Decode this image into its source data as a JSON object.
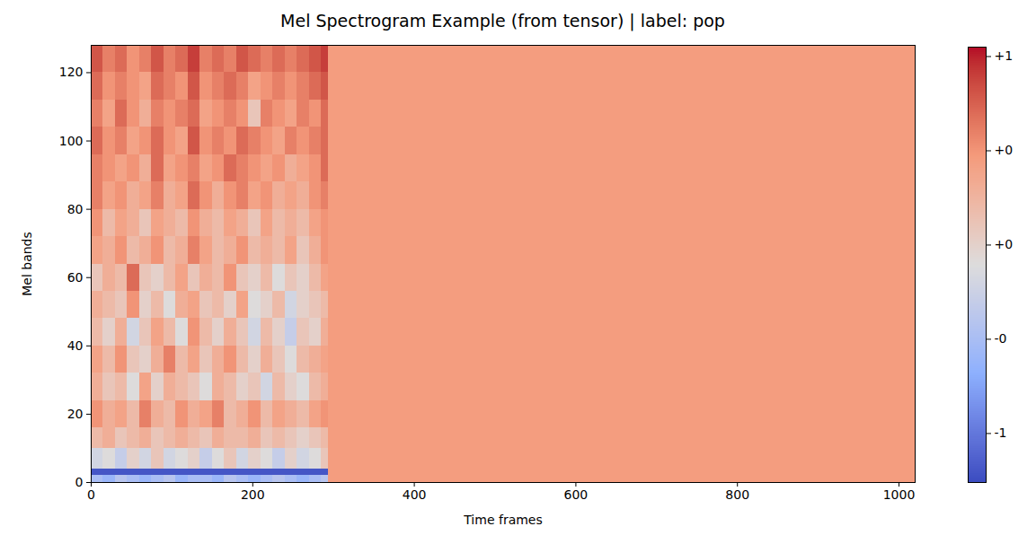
{
  "chart_data": {
    "type": "heatmap",
    "title": "Mel Spectrogram Example (from tensor) | label: pop",
    "x_label": "Time frames",
    "y_label": "Mel bands",
    "xlim": [
      0,
      1020
    ],
    "ylim": [
      0,
      128
    ],
    "xticks": [
      0,
      200,
      400,
      600,
      800,
      1000
    ],
    "yticks": [
      0,
      20,
      40,
      60,
      80,
      100,
      120
    ],
    "x_edges": [
      0,
      15,
      30,
      45,
      60,
      75,
      90,
      105,
      120,
      135,
      150,
      165,
      180,
      195,
      210,
      225,
      240,
      255,
      270,
      285,
      294,
      1020
    ],
    "y_edges": [
      0,
      2,
      4,
      10,
      16,
      24,
      32,
      40,
      48,
      56,
      64,
      72,
      80,
      88,
      96,
      104,
      112,
      120,
      128
    ],
    "cells": [
      [
        -0.5,
        -0.6,
        -0.4,
        -0.5,
        -0.6,
        -0.5,
        -0.4,
        -0.6,
        -0.5,
        -0.5,
        -0.6,
        -0.4,
        -0.5,
        -0.6,
        -0.5,
        -0.4,
        -0.5,
        -0.6,
        -0.5,
        -0.4,
        0.45
      ],
      [
        -1.2,
        -1.2,
        -1.2,
        -1.2,
        -1.2,
        -1.2,
        -1.2,
        -1.2,
        -1.2,
        -1.2,
        -1.2,
        -1.2,
        -1.2,
        -1.2,
        -1.2,
        -1.2,
        -1.2,
        -1.2,
        -1.2,
        -1.2,
        0.45
      ],
      [
        -0.2,
        -0.1,
        -0.3,
        0.0,
        -0.2,
        0.1,
        -0.2,
        -0.1,
        0.0,
        -0.3,
        -0.1,
        0.1,
        -0.2,
        0.0,
        -0.1,
        -0.3,
        0.0,
        -0.2,
        -0.1,
        0.1,
        0.45
      ],
      [
        0.2,
        0.3,
        0.1,
        0.2,
        0.3,
        0.1,
        0.2,
        0.3,
        0.2,
        0.1,
        0.3,
        0.2,
        0.2,
        0.3,
        0.1,
        0.2,
        0.1,
        0.0,
        0.1,
        0.2,
        0.45
      ],
      [
        0.5,
        0.3,
        0.4,
        0.2,
        0.6,
        0.3,
        0.2,
        0.5,
        0.3,
        0.4,
        0.6,
        0.2,
        0.3,
        0.5,
        0.2,
        0.4,
        0.3,
        0.2,
        0.4,
        0.5,
        0.45
      ],
      [
        0.3,
        0.1,
        0.2,
        -0.1,
        0.4,
        0.0,
        0.3,
        0.2,
        0.1,
        -0.1,
        0.3,
        0.2,
        0.0,
        0.1,
        -0.2,
        0.2,
        0.0,
        -0.1,
        0.2,
        0.3,
        0.45
      ],
      [
        0.4,
        0.2,
        0.5,
        0.1,
        0.0,
        0.3,
        0.6,
        0.2,
        0.4,
        0.1,
        0.3,
        0.5,
        0.2,
        0.0,
        0.3,
        0.1,
        -0.1,
        0.2,
        0.3,
        0.4,
        0.45
      ],
      [
        0.2,
        0.0,
        0.3,
        -0.2,
        0.1,
        0.4,
        0.2,
        -0.1,
        0.5,
        0.2,
        0.0,
        0.3,
        0.1,
        -0.2,
        0.2,
        0.0,
        -0.3,
        0.1,
        0.0,
        0.3,
        0.45
      ],
      [
        0.3,
        0.2,
        0.1,
        0.5,
        0.0,
        0.2,
        -0.1,
        0.3,
        0.4,
        0.1,
        0.2,
        0.0,
        0.4,
        -0.1,
        0.0,
        0.2,
        -0.2,
        0.0,
        0.1,
        0.2,
        0.45
      ],
      [
        0.1,
        0.3,
        0.2,
        0.7,
        0.1,
        0.0,
        0.2,
        0.4,
        0.1,
        0.3,
        0.2,
        0.5,
        0.1,
        0.0,
        0.2,
        -0.1,
        0.1,
        0.0,
        0.2,
        0.4,
        0.45
      ],
      [
        0.4,
        0.3,
        0.5,
        0.2,
        0.3,
        0.5,
        0.2,
        0.3,
        0.6,
        0.4,
        0.2,
        0.3,
        0.5,
        0.2,
        0.3,
        0.2,
        0.4,
        0.1,
        0.3,
        0.5,
        0.45
      ],
      [
        0.5,
        0.2,
        0.4,
        0.3,
        0.1,
        0.4,
        0.3,
        0.2,
        0.5,
        0.3,
        0.2,
        0.4,
        0.3,
        0.1,
        0.4,
        0.2,
        0.3,
        0.2,
        0.4,
        0.5,
        0.45
      ],
      [
        0.6,
        0.4,
        0.5,
        0.3,
        0.4,
        0.6,
        0.3,
        0.4,
        0.7,
        0.5,
        0.3,
        0.5,
        0.6,
        0.4,
        0.5,
        0.3,
        0.4,
        0.3,
        0.5,
        0.6,
        0.45
      ],
      [
        0.6,
        0.5,
        0.4,
        0.5,
        0.3,
        0.7,
        0.4,
        0.5,
        0.6,
        0.4,
        0.5,
        0.7,
        0.6,
        0.5,
        0.4,
        0.5,
        0.3,
        0.4,
        0.5,
        0.7,
        0.45
      ],
      [
        0.7,
        0.5,
        0.6,
        0.4,
        0.5,
        0.7,
        0.5,
        0.4,
        0.8,
        0.5,
        0.6,
        0.5,
        0.7,
        0.6,
        0.5,
        0.4,
        0.6,
        0.5,
        0.6,
        0.7,
        0.45
      ],
      [
        0.6,
        0.4,
        0.7,
        0.5,
        0.3,
        0.6,
        0.5,
        0.6,
        0.7,
        0.4,
        0.5,
        0.6,
        0.5,
        0.1,
        0.6,
        0.5,
        0.4,
        0.6,
        0.5,
        0.7,
        0.45
      ],
      [
        0.7,
        0.5,
        0.6,
        0.5,
        0.4,
        0.7,
        0.6,
        0.5,
        0.8,
        0.5,
        0.6,
        0.7,
        0.6,
        0.4,
        0.5,
        0.6,
        0.5,
        0.6,
        0.7,
        0.8,
        0.45
      ],
      [
        0.8,
        0.6,
        0.7,
        0.5,
        0.6,
        0.8,
        0.6,
        0.7,
        0.9,
        0.6,
        0.7,
        0.6,
        0.8,
        0.7,
        0.6,
        0.7,
        0.6,
        0.7,
        0.8,
        0.9,
        0.45
      ]
    ],
    "colorbar": {
      "range": [
        -1.26,
        1.05
      ],
      "ticks": [
        {
          "value": 1,
          "label": "+1"
        },
        {
          "value": 0.5,
          "label": "+0"
        },
        {
          "value": 0,
          "label": "+0"
        },
        {
          "value": -0.5,
          "label": "-0"
        },
        {
          "value": -1,
          "label": "-1"
        }
      ]
    }
  }
}
